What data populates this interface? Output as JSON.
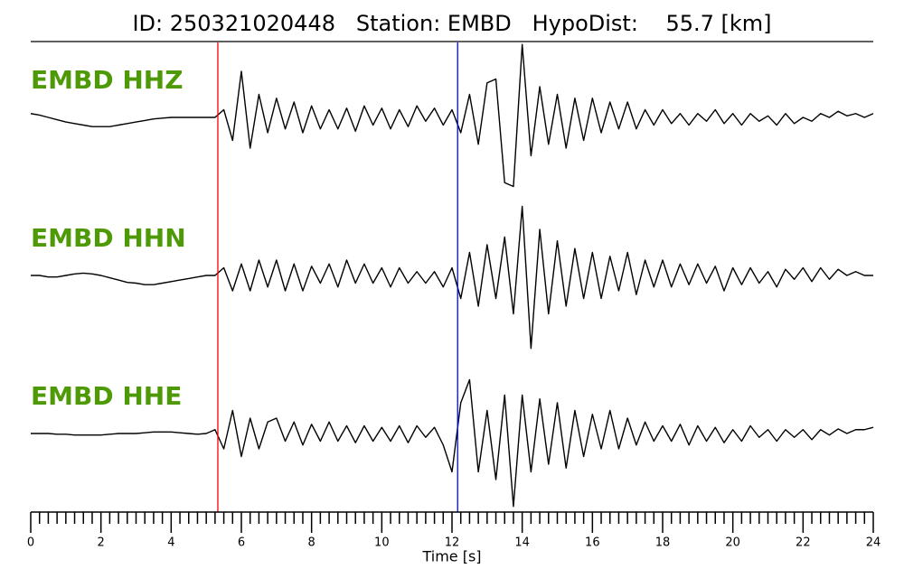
{
  "chart_data": {
    "type": "line",
    "title": "ID: 250321020448   Station: EMBD   HypoDist:    55.7 [km]",
    "xlabel": "Time [s]",
    "xlim": [
      0,
      24
    ],
    "xticks": [
      0,
      2,
      4,
      6,
      8,
      10,
      12,
      14,
      16,
      18,
      20,
      22,
      24
    ],
    "minor_ticks_per_major": 8,
    "ylim": [
      -1,
      1
    ],
    "label_color": "#4e9a06",
    "markers": [
      {
        "x": 5.33,
        "color": "#ff0000"
      },
      {
        "x": 12.16,
        "color": "#0000ff"
      }
    ],
    "x": [
      0,
      0.25,
      0.5,
      0.75,
      1,
      1.25,
      1.5,
      1.75,
      2,
      2.25,
      2.5,
      2.75,
      3,
      3.25,
      3.5,
      3.75,
      4,
      4.25,
      4.5,
      4.75,
      5,
      5.25,
      5.5,
      5.75,
      6,
      6.25,
      6.5,
      6.75,
      7,
      7.25,
      7.5,
      7.75,
      8,
      8.25,
      8.5,
      8.75,
      9,
      9.25,
      9.5,
      9.75,
      10,
      10.25,
      10.5,
      10.75,
      11,
      11.25,
      11.5,
      11.75,
      12,
      12.25,
      12.5,
      12.75,
      13,
      13.25,
      13.5,
      13.75,
      14,
      14.25,
      14.5,
      14.75,
      15,
      15.25,
      15.5,
      15.75,
      16,
      16.25,
      16.5,
      16.75,
      17,
      17.25,
      17.5,
      17.75,
      18,
      18.25,
      18.5,
      18.75,
      19,
      19.25,
      19.5,
      19.75,
      20,
      20.25,
      20.5,
      20.75,
      21,
      21.25,
      21.5,
      21.75,
      22,
      22.25,
      22.5,
      22.75,
      23,
      23.25,
      23.5,
      23.75,
      24
    ],
    "series": [
      {
        "name": "EMBD HHZ",
        "color": "#000000",
        "values": [
          0.05,
          0.03,
          0,
          -0.03,
          -0.06,
          -0.08,
          -0.1,
          -0.12,
          -0.12,
          -0.12,
          -0.1,
          -0.08,
          -0.06,
          -0.04,
          -0.02,
          -0.01,
          0,
          0,
          0,
          0,
          0,
          0,
          0.1,
          -0.3,
          0.6,
          -0.4,
          0.3,
          -0.2,
          0.25,
          -0.15,
          0.2,
          -0.2,
          0.15,
          -0.15,
          0.1,
          -0.15,
          0.12,
          -0.18,
          0.15,
          -0.1,
          0.12,
          -0.15,
          0.1,
          -0.12,
          0.15,
          -0.05,
          0.12,
          -0.1,
          0.1,
          -0.2,
          0.3,
          -0.35,
          0.45,
          0.5,
          -0.85,
          -0.9,
          0.95,
          -0.5,
          0.4,
          -0.35,
          0.3,
          -0.4,
          0.25,
          -0.3,
          0.25,
          -0.2,
          0.2,
          -0.15,
          0.2,
          -0.15,
          0.1,
          -0.1,
          0.1,
          -0.08,
          0.05,
          -0.1,
          0.05,
          -0.05,
          0.1,
          -0.08,
          0.05,
          -0.1,
          0.05,
          -0.05,
          0.02,
          -0.1,
          0.05,
          -0.08,
          0,
          -0.05,
          0.05,
          0,
          0.08,
          0.02,
          0.05,
          0,
          0.05
        ]
      },
      {
        "name": "EMBD HHN",
        "color": "#000000",
        "values": [
          0,
          0,
          -0.02,
          -0.02,
          0,
          0.02,
          0.03,
          0.02,
          0,
          -0.03,
          -0.06,
          -0.09,
          -0.1,
          -0.12,
          -0.12,
          -0.1,
          -0.08,
          -0.06,
          -0.04,
          -0.02,
          0,
          0,
          0.1,
          -0.2,
          0.15,
          -0.2,
          0.2,
          -0.15,
          0.2,
          -0.2,
          0.15,
          -0.2,
          0.12,
          -0.1,
          0.15,
          -0.15,
          0.2,
          -0.1,
          0.15,
          -0.1,
          0.1,
          -0.15,
          0.1,
          -0.1,
          0.05,
          -0.1,
          0.05,
          -0.15,
          0.1,
          -0.3,
          0.3,
          -0.4,
          0.4,
          -0.3,
          0.5,
          -0.5,
          0.9,
          -0.95,
          0.6,
          -0.5,
          0.45,
          -0.4,
          0.35,
          -0.3,
          0.3,
          -0.3,
          0.25,
          -0.2,
          0.3,
          -0.25,
          0.2,
          -0.15,
          0.2,
          -0.15,
          0.15,
          -0.12,
          0.15,
          -0.1,
          0.12,
          -0.2,
          0.1,
          -0.12,
          0.1,
          -0.1,
          0.05,
          -0.15,
          0.08,
          -0.05,
          0.1,
          -0.08,
          0.1,
          -0.05,
          0.08,
          0,
          0.05,
          0,
          0
        ]
      },
      {
        "name": "EMBD HHE",
        "color": "#000000",
        "values": [
          0,
          0,
          0,
          -0.01,
          -0.01,
          -0.02,
          -0.02,
          -0.02,
          -0.02,
          -0.01,
          0,
          0,
          0,
          0.01,
          0.02,
          0.02,
          0.02,
          0.01,
          0,
          -0.01,
          0,
          0.05,
          -0.2,
          0.3,
          -0.3,
          0.2,
          -0.2,
          0.15,
          0.2,
          -0.1,
          0.15,
          -0.15,
          0.12,
          -0.1,
          0.15,
          -0.1,
          0.1,
          -0.12,
          0.1,
          -0.1,
          0.08,
          -0.1,
          0.1,
          -0.12,
          0.1,
          -0.05,
          0.08,
          -0.15,
          -0.5,
          0.4,
          0.7,
          -0.5,
          0.3,
          -0.6,
          0.5,
          -0.95,
          0.5,
          -0.5,
          0.45,
          -0.4,
          0.4,
          -0.45,
          0.3,
          -0.3,
          0.25,
          -0.2,
          0.3,
          -0.2,
          0.2,
          -0.15,
          0.15,
          -0.1,
          0.1,
          -0.1,
          0.12,
          -0.15,
          0.1,
          -0.1,
          0.08,
          -0.12,
          0.05,
          -0.1,
          0.1,
          -0.05,
          0.05,
          -0.1,
          0.05,
          -0.05,
          0.05,
          -0.08,
          0.05,
          -0.02,
          0.06,
          0,
          0.05,
          0.05,
          0.08
        ]
      }
    ]
  }
}
